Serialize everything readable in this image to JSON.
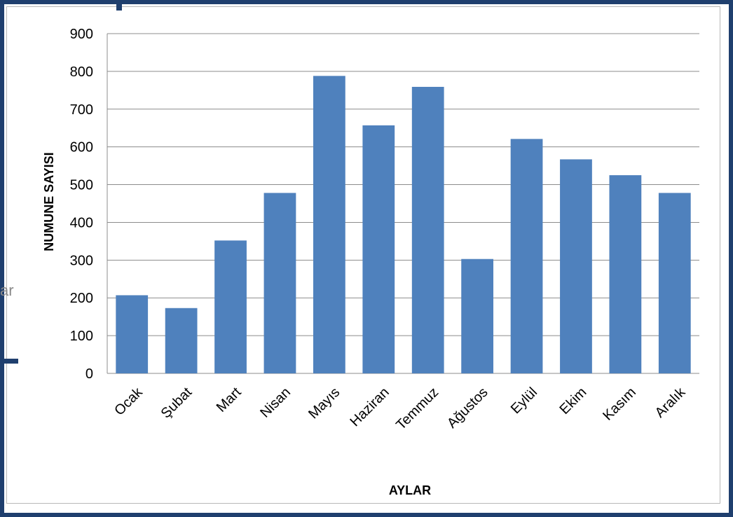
{
  "chart_data": {
    "type": "bar",
    "categories": [
      "Ocak",
      "Şubat",
      "Mart",
      "Nisan",
      "Mayıs",
      "Haziran",
      "Temmuz",
      "Ağustos",
      "Eylül",
      "Ekim",
      "Kasım",
      "Aralık"
    ],
    "values": [
      207,
      173,
      352,
      478,
      788,
      657,
      759,
      303,
      621,
      567,
      525,
      478
    ],
    "xlabel": "AYLAR",
    "ylabel": "NUMUNE SAYISI",
    "ylim": [
      0,
      900
    ],
    "yticks": [
      0,
      100,
      200,
      300,
      400,
      500,
      600,
      700,
      800,
      900
    ],
    "grid": true,
    "legend": "none",
    "bar_color": "#4f81bd",
    "grid_color": "#8c8c8c"
  },
  "page": {
    "stray_text": "ar"
  }
}
